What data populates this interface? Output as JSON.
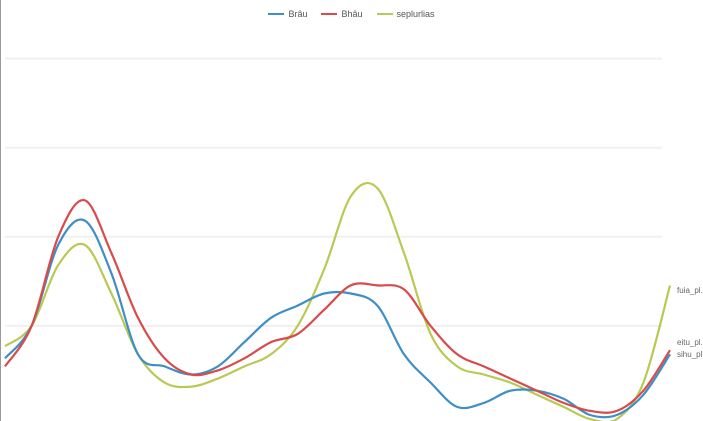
{
  "chart_data": {
    "type": "line",
    "grid": true,
    "legend_position": "top",
    "x": [
      0,
      4,
      8,
      12,
      16,
      20,
      24,
      28,
      32,
      36,
      40,
      44,
      48,
      52,
      56,
      60,
      64,
      68,
      72,
      76,
      80,
      84,
      88,
      92,
      96,
      100
    ],
    "ylim": [
      0,
      100
    ],
    "series": [
      {
        "name": "Brâu",
        "color": "#3d8fc6",
        "values": [
          14,
          22,
          42,
          48,
          35,
          15,
          12,
          10,
          12,
          18,
          24,
          27,
          30,
          30,
          27,
          15,
          8,
          2,
          3,
          6,
          6,
          4,
          0,
          0,
          5,
          15
        ]
      },
      {
        "name": "Bhâu",
        "color": "#d94a4a",
        "values": [
          12,
          22,
          44,
          53,
          40,
          24,
          14,
          10,
          11,
          14,
          18,
          20,
          26,
          32,
          32,
          31,
          22,
          15,
          12,
          9,
          6,
          3,
          1,
          1,
          6,
          16
        ]
      },
      {
        "name": "seplurlias",
        "color": "#b9c954",
        "values": [
          17,
          22,
          37,
          42,
          30,
          15,
          8,
          7,
          9,
          12,
          15,
          22,
          36,
          54,
          56,
          40,
          20,
          12,
          10,
          8,
          5,
          2,
          -1,
          -1,
          8,
          32
        ]
      }
    ],
    "end_labels": [
      "fuia_pl...",
      "eitu_pl...",
      "sihu_pl..."
    ]
  }
}
